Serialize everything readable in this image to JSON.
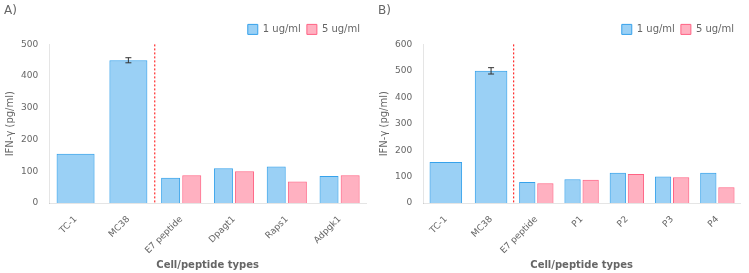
{
  "chart_data": [
    {
      "type": "bar",
      "title": "A)",
      "categories": [
        "TC-1",
        "MC38",
        "E7 peptide",
        "Dpagt1",
        "Raps1",
        "Adpgk1"
      ],
      "series": [
        {
          "name": "1 ug/ml",
          "values": [
            155,
            450,
            80,
            110,
            115,
            85
          ],
          "errors": [
            null,
            8,
            null,
            null,
            null,
            null
          ]
        },
        {
          "name": "5 ug/ml",
          "values": [
            null,
            null,
            88,
            100,
            68,
            88
          ]
        }
      ],
      "xlabel": "Cell/peptide types",
      "ylabel": "IFN-γ (pg/ml)",
      "ylim": [
        0,
        500
      ],
      "yticks": [
        0,
        100,
        200,
        300,
        400,
        500
      ],
      "grid": false,
      "legend": "upper right",
      "divider": {
        "after": "MC38",
        "color": "red",
        "line_style": "dotted"
      }
    },
    {
      "type": "bar",
      "title": "B)",
      "categories": [
        "TC-1",
        "MC38",
        "E7 peptide",
        "P1",
        "P2",
        "P3",
        "P4"
      ],
      "series": [
        {
          "name": "1 ug/ml",
          "values": [
            155,
            500,
            80,
            90,
            115,
            100,
            115
          ],
          "errors": [
            null,
            12,
            null,
            null,
            null,
            null,
            null
          ]
        },
        {
          "name": "5 ug/ml",
          "values": [
            null,
            null,
            75,
            88,
            110,
            98,
            60
          ]
        }
      ],
      "xlabel": "Cell/peptide types",
      "ylabel": "IFN-γ (pg/ml)",
      "ylim": [
        0,
        600
      ],
      "yticks": [
        0,
        100,
        200,
        300,
        400,
        500,
        600
      ],
      "grid": false,
      "legend": "upper right",
      "divider": {
        "after": "MC38",
        "color": "red",
        "line_style": "dotted"
      }
    }
  ]
}
